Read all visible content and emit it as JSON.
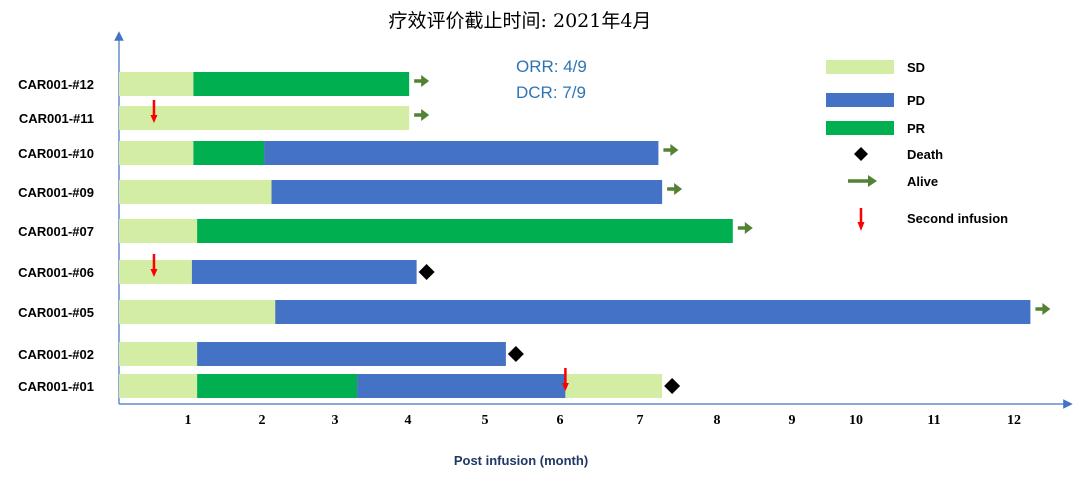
{
  "chart_data": {
    "type": "bar",
    "orientation": "horizontal-stacked-swimmer",
    "title": "疗效评价截止时间: 2021年4月",
    "xlabel": "Post infusion (month)",
    "ylabel": "",
    "xlim": [
      0,
      12.4
    ],
    "xticks": [
      "1",
      "2",
      "3",
      "4",
      "5",
      "6",
      "7",
      "8",
      "9",
      "10",
      "11",
      "12"
    ],
    "annotations": [
      "ORR: 4/9",
      "DCR: 7/9"
    ],
    "colors": {
      "SD": "#d3eda4",
      "PD": "#4472c4",
      "PR": "#00b050",
      "alive": "#548235",
      "death": "#000000",
      "infusion": "#ff0000"
    },
    "legend": [
      {
        "key": "SD",
        "label": "SD",
        "kind": "bar"
      },
      {
        "key": "PD",
        "label": "PD",
        "kind": "bar"
      },
      {
        "key": "PR",
        "label": "PR",
        "kind": "bar"
      },
      {
        "key": "death",
        "label": "Death",
        "kind": "diamond"
      },
      {
        "key": "alive",
        "label": "Alive",
        "kind": "arrow"
      },
      {
        "key": "infusion",
        "label": "Second  infusion",
        "kind": "downarrow"
      }
    ],
    "patients": [
      {
        "id": "CAR001-#12",
        "segments": [
          {
            "status": "SD",
            "start": 0,
            "end": 1.0
          },
          {
            "status": "PR",
            "start": 1.0,
            "end": 3.9
          }
        ],
        "outcome": "alive",
        "second_infusion": null
      },
      {
        "id": "CAR001-#11",
        "segments": [
          {
            "status": "SD",
            "start": 0,
            "end": 3.9
          }
        ],
        "outcome": "alive",
        "second_infusion": 0.47
      },
      {
        "id": "CAR001-#10",
        "segments": [
          {
            "status": "SD",
            "start": 0,
            "end": 1.0
          },
          {
            "status": "PR",
            "start": 1.0,
            "end": 1.95
          },
          {
            "status": "PD",
            "start": 1.95,
            "end": 7.25
          }
        ],
        "outcome": "alive",
        "second_infusion": null
      },
      {
        "id": "CAR001-#09",
        "segments": [
          {
            "status": "SD",
            "start": 0,
            "end": 2.05
          },
          {
            "status": "PD",
            "start": 2.05,
            "end": 7.3
          }
        ],
        "outcome": "alive",
        "second_infusion": null
      },
      {
        "id": "CAR001-#07",
        "segments": [
          {
            "status": "SD",
            "start": 0,
            "end": 1.05
          },
          {
            "status": "PR",
            "start": 1.05,
            "end": 8.25
          }
        ],
        "outcome": "alive",
        "second_infusion": null
      },
      {
        "id": "CAR001-#06",
        "segments": [
          {
            "status": "SD",
            "start": 0,
            "end": 0.98
          },
          {
            "status": "PD",
            "start": 0.98,
            "end": 4.0
          }
        ],
        "outcome": "death",
        "second_infusion": 0.47
      },
      {
        "id": "CAR001-#05",
        "segments": [
          {
            "status": "SD",
            "start": 0,
            "end": 2.1
          },
          {
            "status": "PD",
            "start": 2.1,
            "end": 12.25
          }
        ],
        "outcome": "alive",
        "second_infusion": null
      },
      {
        "id": "CAR001-#02",
        "segments": [
          {
            "status": "SD",
            "start": 0,
            "end": 1.05
          },
          {
            "status": "PD",
            "start": 1.05,
            "end": 5.2
          }
        ],
        "outcome": "death",
        "second_infusion": null
      },
      {
        "id": "CAR001-#01",
        "segments": [
          {
            "status": "SD",
            "start": 0,
            "end": 1.05
          },
          {
            "status": "PR",
            "start": 1.05,
            "end": 3.2
          },
          {
            "status": "PD",
            "start": 3.2,
            "end": 6.0
          },
          {
            "status": "SD",
            "start": 6.0,
            "end": 7.3
          }
        ],
        "outcome": "death",
        "second_infusion": 6.0
      }
    ]
  }
}
